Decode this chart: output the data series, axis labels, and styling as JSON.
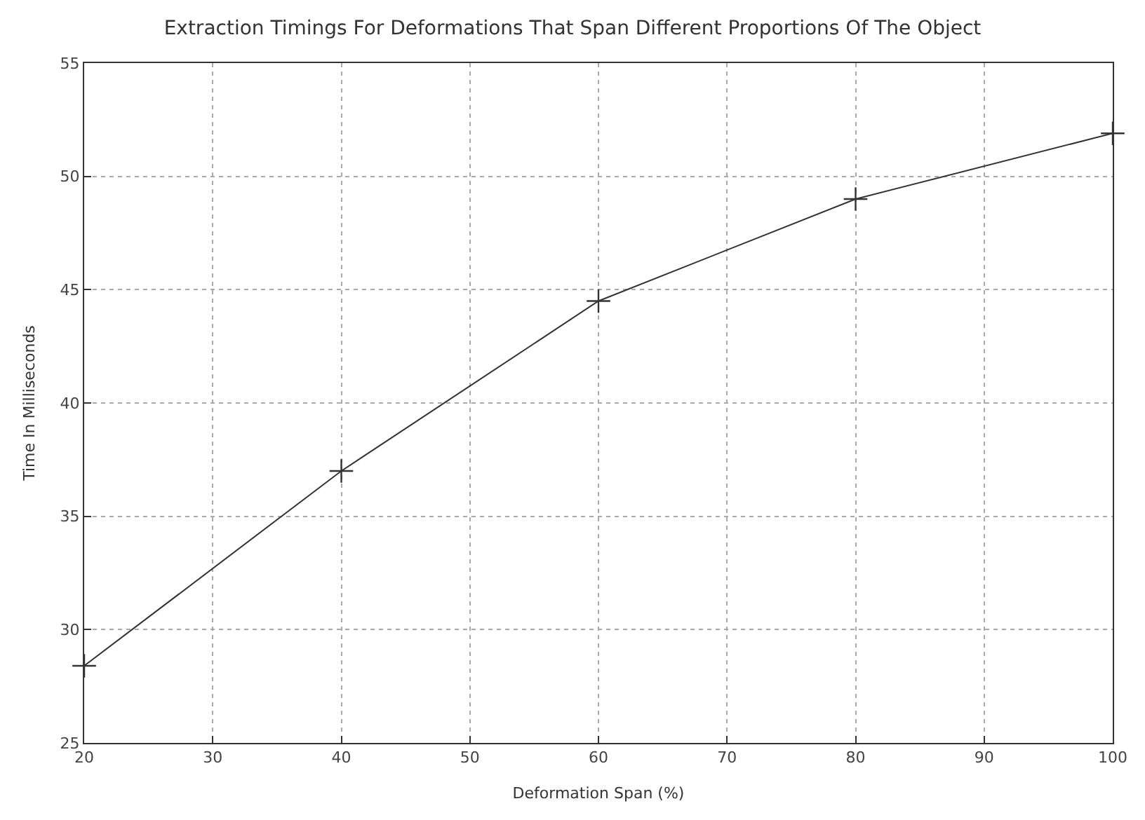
{
  "chart_data": {
    "type": "line",
    "title": "Extraction Timings For Deformations That Span Different Proportions Of The Object",
    "xlabel": "Deformation Span (%)",
    "ylabel": "Time In Milliseconds",
    "x": [
      20,
      40,
      60,
      80,
      100
    ],
    "series": [
      {
        "color": "#333333",
        "values": [
          28.4,
          37,
          44.5,
          49,
          51.9
        ]
      }
    ],
    "xlim": [
      20,
      100
    ],
    "xticks": [
      20,
      30,
      40,
      50,
      60,
      70,
      80,
      90,
      100
    ],
    "ylim": [
      25,
      55
    ],
    "yticks": [
      25,
      30,
      35,
      40,
      45,
      50,
      55
    ],
    "grid": true,
    "marker": "cross",
    "line_style": "solid"
  }
}
